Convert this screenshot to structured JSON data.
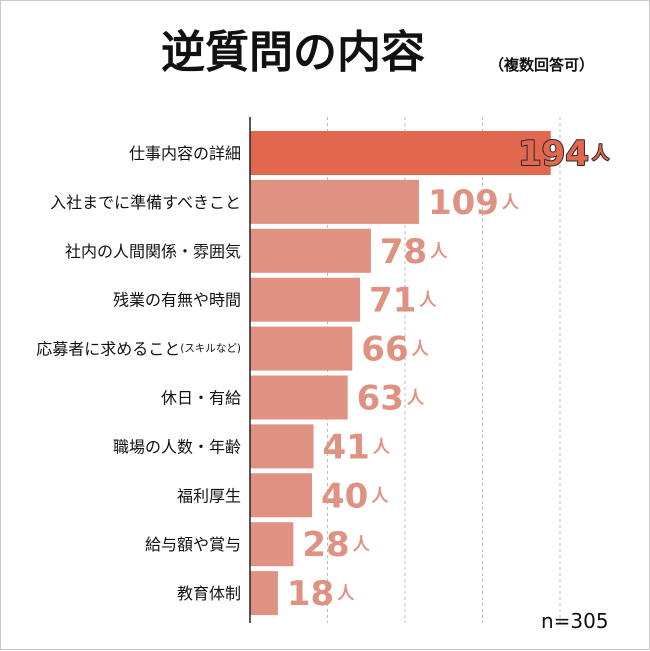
{
  "chart_data": {
    "type": "bar",
    "orientation": "horizontal",
    "title": "逆質問の内容",
    "subtitle": "（複数回答可）",
    "unit": "人",
    "sample_note": "n=305",
    "categories": [
      {
        "label": "仕事内容の詳細",
        "suffix": ""
      },
      {
        "label": "入社までに準備すべきこと",
        "suffix": ""
      },
      {
        "label": "社内の人間関係・雰囲気",
        "suffix": ""
      },
      {
        "label": "残業の有無や時間",
        "suffix": ""
      },
      {
        "label": "応募者に求めること",
        "suffix": "(スキルなど)"
      },
      {
        "label": "休日・有給",
        "suffix": ""
      },
      {
        "label": "職場の人数・年齢",
        "suffix": ""
      },
      {
        "label": "福利厚生",
        "suffix": ""
      },
      {
        "label": "給与額や賞与",
        "suffix": ""
      },
      {
        "label": "教育体制",
        "suffix": ""
      }
    ],
    "values": [
      194,
      109,
      78,
      71,
      66,
      63,
      41,
      40,
      28,
      18
    ],
    "xlim": [
      0,
      200
    ],
    "gridlines": [
      50,
      100,
      150,
      200
    ],
    "grid": true,
    "colors": {
      "highlight_bar": "#e2674f",
      "bar": "#df9282",
      "grid": "#bbbbbb",
      "axis": "#222222",
      "highlight_label_fill": "#e2674f",
      "highlight_label_stroke": "#2a2a2a",
      "label": "#df9282"
    }
  }
}
